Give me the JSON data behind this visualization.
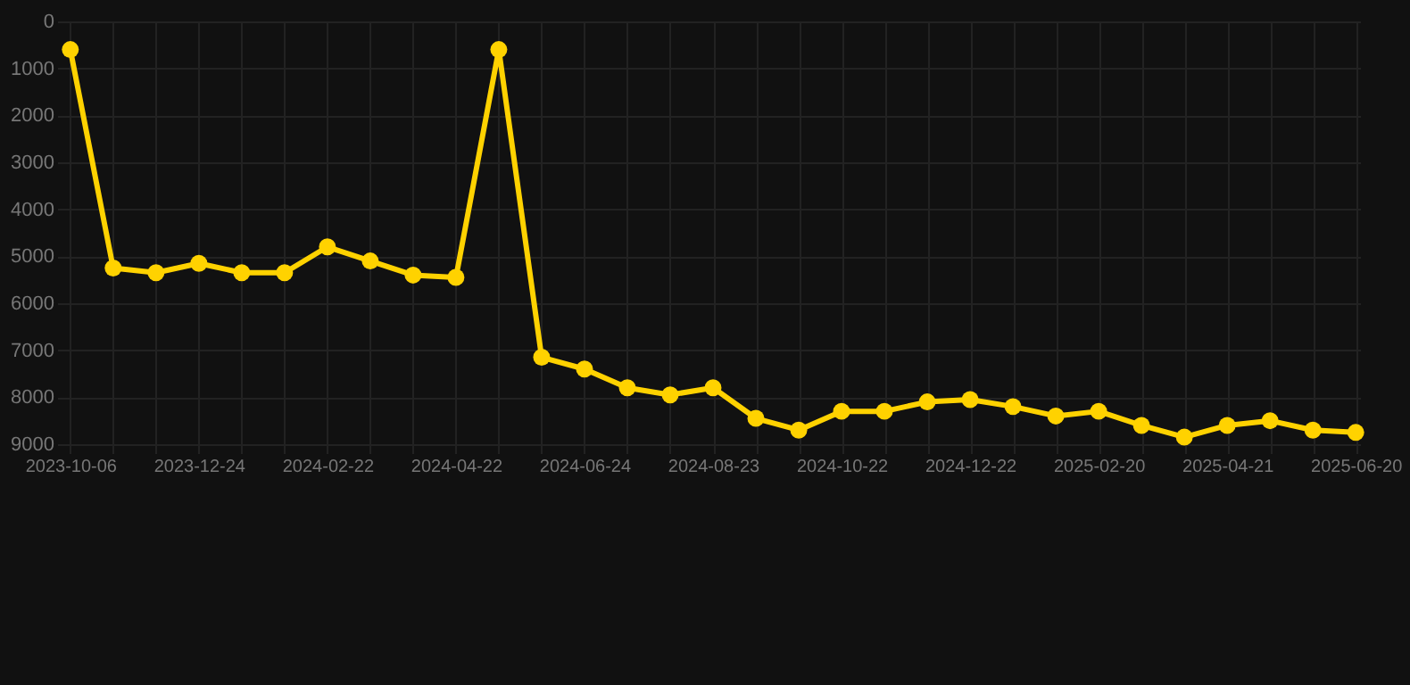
{
  "chart_data": {
    "type": "line",
    "categories": [
      "2023-10-06",
      null,
      null,
      "2023-12-24",
      null,
      null,
      "2024-02-22",
      null,
      null,
      "2024-04-22",
      null,
      null,
      "2024-06-24",
      null,
      null,
      "2024-08-23",
      null,
      null,
      "2024-10-22",
      null,
      null,
      "2024-12-22",
      null,
      null,
      "2025-02-20",
      null,
      null,
      "2025-04-21",
      null,
      null,
      "2025-06-20"
    ],
    "series": [
      {
        "color": "#ffd200",
        "values": [
          600,
          5250,
          5350,
          5150,
          5350,
          5350,
          4800,
          5100,
          5400,
          5450,
          600,
          7150,
          7400,
          7800,
          7950,
          7800,
          8450,
          8700,
          8300,
          8300,
          8100,
          8050,
          8200,
          8400,
          8300,
          8600,
          8850,
          8600,
          8500,
          8700,
          8750
        ]
      }
    ],
    "ylim": [
      9000,
      0
    ],
    "yticks": [
      0,
      1000,
      2000,
      3000,
      4000,
      5000,
      6000,
      7000,
      8000,
      9000
    ],
    "grid": true,
    "legend": false,
    "marker": "circle",
    "line_style": "solid"
  }
}
